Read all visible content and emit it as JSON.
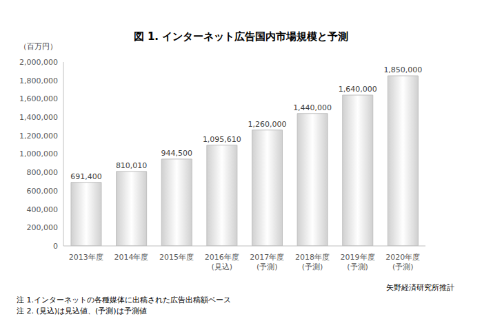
{
  "chart_data": {
    "type": "bar",
    "title": "図 1. インターネット広告国内市場規模と予測",
    "y_label": "（百万円）",
    "categories": [
      "2013年度",
      "2014年度",
      "2015年度",
      "2016年度\n(見込)",
      "2017年度\n(予測)",
      "2018年度\n(予測)",
      "2019年度\n(予測)",
      "2020年度\n(予測)"
    ],
    "values": [
      691400,
      810010,
      944500,
      1095610,
      1260000,
      1440000,
      1640000,
      1850000
    ],
    "value_labels": [
      "691,400",
      "810,010",
      "944,500",
      "1,095,610",
      "1,260,000",
      "1,440,000",
      "1,640,000",
      "1,850,000"
    ],
    "data_labels": true,
    "color": "#d0d0d0",
    "ylim": [
      0,
      2000000
    ],
    "yticks": [
      0,
      {
        "value": 200000,
        "label": "200,000"
      },
      {
        "value": 400000,
        "label": "400,000"
      },
      {
        "value": 600000,
        "label": "600,000"
      },
      {
        "value": 800000,
        "label": "800,000"
      },
      {
        "value": 1000000,
        "label": "1,000,000"
      },
      {
        "value": 1200000,
        "label": "1,200,000"
      },
      {
        "value": 1400000,
        "label": "1,400,000"
      },
      {
        "value": 1600000,
        "label": "1,600,000"
      },
      {
        "value": 1800000,
        "label": "1,800,000"
      },
      {
        "value": 2000000,
        "label": "2,000,000"
      }
    ],
    "grid": false,
    "source": "矢野経済研究所推計",
    "notes": [
      "注 1.インターネットの各種媒体に出稿された広告出稿額ベース",
      "注 2. (見込)は見込値、(予測)は予測値"
    ]
  }
}
